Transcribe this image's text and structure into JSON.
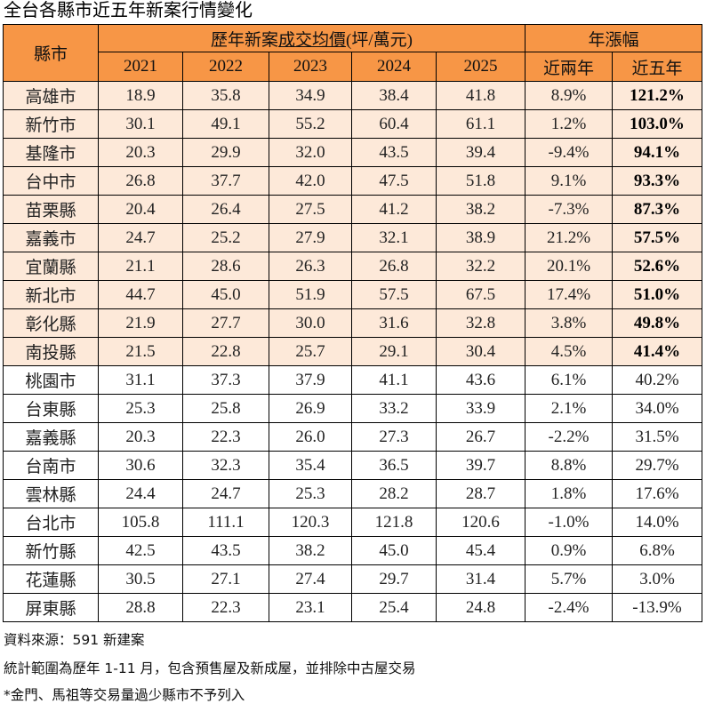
{
  "title": "全台各縣市近五年新案行情變化",
  "header": {
    "city": "縣市",
    "price_group_prefix": "歷年新案",
    "price_group_underlined": "成交均價",
    "price_group_suffix": "(坪/萬元)",
    "growth_group": "年漲幅",
    "years": [
      "2021",
      "2022",
      "2023",
      "2024",
      "2025"
    ],
    "growth_cols": [
      "近兩年",
      "近五年"
    ]
  },
  "colors": {
    "header": "#f79646",
    "highlight_row": "#fde9d9"
  },
  "rows": [
    [
      "高雄市",
      "18.9",
      "35.8",
      "34.9",
      "38.4",
      "41.8",
      "8.9%",
      "121.2%"
    ],
    [
      "新竹市",
      "30.1",
      "49.1",
      "55.2",
      "60.4",
      "61.1",
      "1.2%",
      "103.0%"
    ],
    [
      "基隆市",
      "20.3",
      "29.9",
      "32.0",
      "43.5",
      "39.4",
      "-9.4%",
      "94.1%"
    ],
    [
      "台中市",
      "26.8",
      "37.7",
      "42.0",
      "47.5",
      "51.8",
      "9.1%",
      "93.3%"
    ],
    [
      "苗栗縣",
      "20.4",
      "26.4",
      "27.5",
      "41.2",
      "38.2",
      "-7.3%",
      "87.3%"
    ],
    [
      "嘉義市",
      "24.7",
      "25.2",
      "27.9",
      "32.1",
      "38.9",
      "21.2%",
      "57.5%"
    ],
    [
      "宜蘭縣",
      "21.1",
      "28.6",
      "26.3",
      "26.8",
      "32.2",
      "20.1%",
      "52.6%"
    ],
    [
      "新北市",
      "44.7",
      "45.0",
      "51.9",
      "57.5",
      "67.5",
      "17.4%",
      "51.0%"
    ],
    [
      "彰化縣",
      "21.9",
      "27.7",
      "30.0",
      "31.6",
      "32.8",
      "3.8%",
      "49.8%"
    ],
    [
      "南投縣",
      "21.5",
      "22.8",
      "25.7",
      "29.1",
      "30.4",
      "4.5%",
      "41.4%"
    ],
    [
      "桃園市",
      "31.1",
      "37.3",
      "37.9",
      "41.1",
      "43.6",
      "6.1%",
      "40.2%"
    ],
    [
      "台東縣",
      "25.3",
      "25.8",
      "26.9",
      "33.2",
      "33.9",
      "2.1%",
      "34.0%"
    ],
    [
      "嘉義縣",
      "20.3",
      "22.3",
      "26.0",
      "27.3",
      "26.7",
      "-2.2%",
      "31.5%"
    ],
    [
      "台南市",
      "30.6",
      "32.3",
      "35.4",
      "36.5",
      "39.7",
      "8.8%",
      "29.7%"
    ],
    [
      "雲林縣",
      "24.4",
      "24.7",
      "25.3",
      "28.2",
      "28.7",
      "1.8%",
      "17.6%"
    ],
    [
      "台北市",
      "105.8",
      "111.1",
      "120.3",
      "121.8",
      "120.6",
      "-1.0%",
      "14.0%"
    ],
    [
      "新竹縣",
      "42.5",
      "43.5",
      "38.2",
      "45.0",
      "45.4",
      "0.9%",
      "6.8%"
    ],
    [
      "花蓮縣",
      "30.5",
      "27.1",
      "27.4",
      "29.7",
      "31.4",
      "5.7%",
      "3.0%"
    ],
    [
      "屏東縣",
      "28.8",
      "22.3",
      "23.1",
      "25.4",
      "24.8",
      "-2.4%",
      "-13.9%"
    ]
  ],
  "highlighted_row_count": 10,
  "notes": [
    "資料來源：591 新建案",
    "統計範圍為歷年 1-11 月，包含預售屋及新成屋，並排除中古屋交易",
    "*金門、馬祖等交易量過少縣市不予列入"
  ]
}
